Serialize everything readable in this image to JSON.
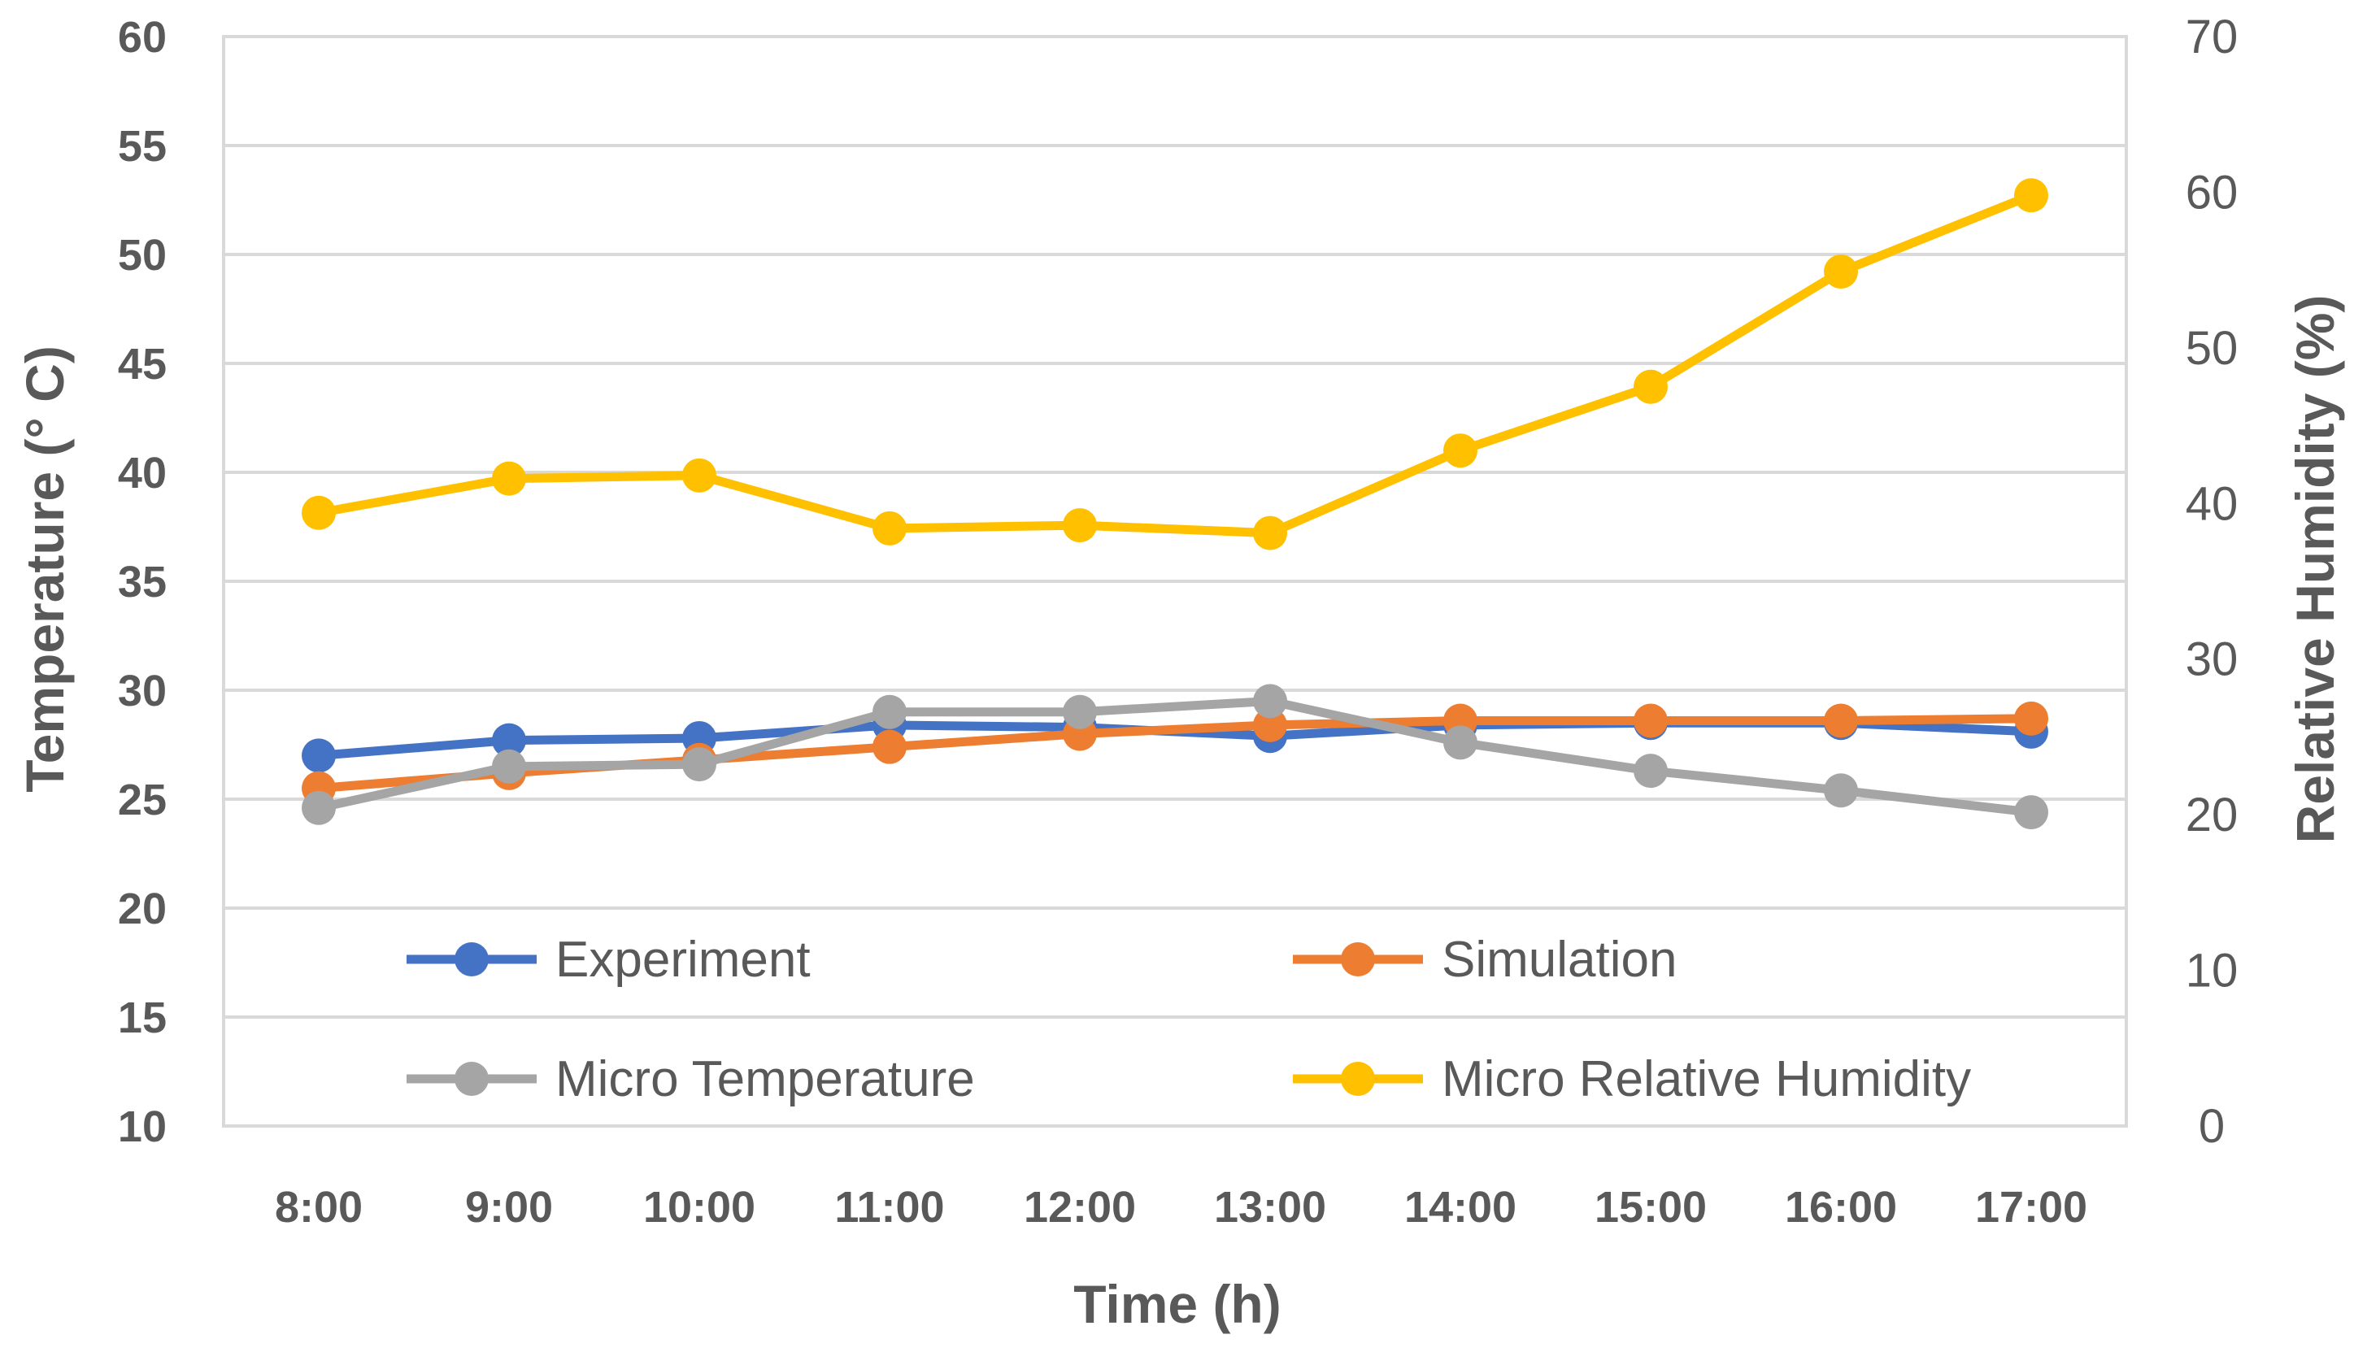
{
  "chart_data": {
    "type": "line",
    "title": "",
    "categories": [
      "8:00",
      "9:00",
      "10:00",
      "11:00",
      "12:00",
      "13:00",
      "14:00",
      "15:00",
      "16:00",
      "17:00"
    ],
    "xlabel": "Time (h)",
    "ylabel": "Temperature (° C)",
    "y2label": "Relative Humidity (%)",
    "ylim": [
      10,
      60
    ],
    "y2lim": [
      0,
      70
    ],
    "yticks": [
      "10",
      "15",
      "20",
      "25",
      "30",
      "35",
      "40",
      "45",
      "50",
      "55",
      "60"
    ],
    "y2ticks": [
      "0",
      "10",
      "20",
      "30",
      "40",
      "50",
      "60",
      "70"
    ],
    "grid": true,
    "legend_position": "bottom-inside",
    "series": [
      {
        "name": "Experiment",
        "axis": "left",
        "color": "#4472C4",
        "values": [
          27.0,
          27.7,
          27.8,
          28.4,
          28.3,
          27.9,
          28.4,
          28.5,
          28.5,
          28.1
        ]
      },
      {
        "name": "Simulation",
        "axis": "left",
        "color": "#ED7D31",
        "values": [
          25.5,
          26.2,
          26.8,
          27.4,
          28.0,
          28.4,
          28.6,
          28.6,
          28.6,
          28.7
        ]
      },
      {
        "name": "Micro Temperature",
        "axis": "left",
        "color": "#A5A5A5",
        "values": [
          24.6,
          26.5,
          26.6,
          29.0,
          29.0,
          29.5,
          27.6,
          26.3,
          25.4,
          24.4
        ]
      },
      {
        "name": "Micro Relative Humidity",
        "axis": "right",
        "color": "#FFC000",
        "values": [
          39.4,
          41.6,
          41.8,
          38.4,
          38.6,
          38.1,
          43.4,
          47.5,
          54.9,
          59.8
        ]
      }
    ]
  }
}
